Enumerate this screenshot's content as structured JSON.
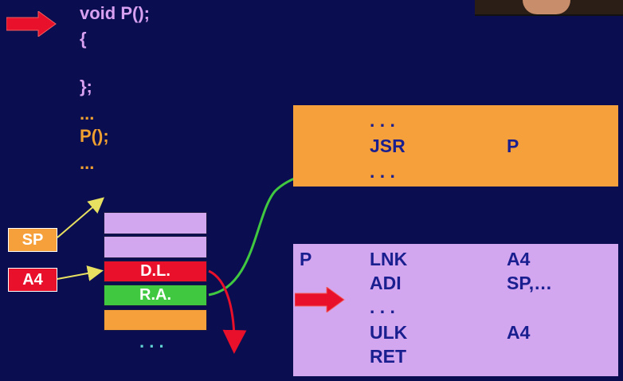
{
  "code": {
    "line1": "void P();",
    "line2": "{",
    "line3": "};",
    "line4": "...",
    "line5": "P();",
    "line6": "..."
  },
  "registers": {
    "sp_label": "SP",
    "a4_label": "A4"
  },
  "stack": {
    "dl_label": "D.L.",
    "ra_label": "R.A.",
    "ellipsis": ". . ."
  },
  "caller_panel": {
    "row1_op": ". . .",
    "row2_op": "JSR",
    "row2_arg": "P",
    "row3_op": ". . ."
  },
  "proc_panel": {
    "label": "P",
    "rows": [
      {
        "op": "LNK",
        "arg": "A4"
      },
      {
        "op": "ADI",
        "arg": "SP,…"
      },
      {
        "op": ". . .",
        "arg": ""
      },
      {
        "op": "ULK",
        "arg": "A4"
      },
      {
        "op": "RET",
        "arg": ""
      }
    ]
  },
  "colors": {
    "background": "#0a0d4f",
    "orange": "#f6a03c",
    "purple": "#d8a0f0",
    "red": "#e8102a",
    "green": "#40c840",
    "lavender": "#d3a6f0"
  }
}
